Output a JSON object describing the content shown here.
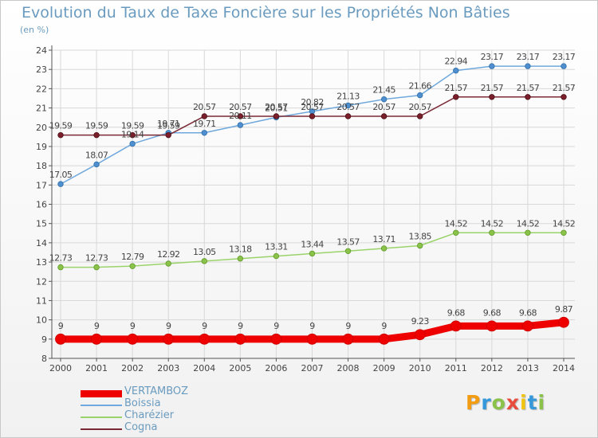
{
  "title": "Evolution du Taux de Taxe Foncière sur les Propriétés Non Bâties",
  "unit_label": "(en %)",
  "logo": {
    "text": "Proxiti",
    "letters": [
      "P",
      "r",
      "o",
      "x",
      "i",
      "t",
      "i"
    ],
    "colors": [
      "#f39c12",
      "#3498db",
      "#8bc34a",
      "#e74c3c",
      "#f1c40f",
      "#3498db",
      "#8bc34a"
    ]
  },
  "chart_data": {
    "type": "line",
    "title": "Evolution du Taux de Taxe Foncière sur les Propriétés Non Bâties",
    "ylabel": "(en %)",
    "xlabel": "",
    "ylim": [
      8,
      24
    ],
    "yticks": [
      8,
      9,
      10,
      11,
      12,
      13,
      14,
      15,
      16,
      17,
      18,
      19,
      20,
      21,
      22,
      23,
      24
    ],
    "grid": true,
    "categories": [
      "2000",
      "2001",
      "2002",
      "2003",
      "2004",
      "2005",
      "2006",
      "2007",
      "2008",
      "2009",
      "2010",
      "2011",
      "2012",
      "2013",
      "2014"
    ],
    "series": [
      {
        "name": "VERTAMBOZ",
        "color": "#ee0000",
        "values": [
          9,
          9,
          9,
          9,
          9,
          9,
          9,
          9,
          9,
          9,
          9.23,
          9.68,
          9.68,
          9.68,
          9.87
        ],
        "labels": [
          "9",
          "9",
          "9",
          "9",
          "9",
          "9",
          "9",
          "9",
          "9",
          "9",
          "9.23",
          "9.68",
          "9.68",
          "9.68",
          "9.87"
        ]
      },
      {
        "name": "Boissia",
        "color": "#6fa8dc",
        "values": [
          17.05,
          18.07,
          19.14,
          19.71,
          19.71,
          20.11,
          20.51,
          20.82,
          21.13,
          21.45,
          21.66,
          22.94,
          23.17,
          23.17,
          23.17
        ],
        "labels": [
          "17.05",
          "18.07",
          "19.14",
          "19.71",
          "19.71",
          "20.11",
          "20.51",
          "20.82",
          "21.13",
          "21.45",
          "21.66",
          "22.94",
          "23.17",
          "23.17",
          "23.17"
        ]
      },
      {
        "name": "Charézier",
        "color": "#9ad36a",
        "values": [
          12.73,
          12.73,
          12.79,
          12.92,
          13.05,
          13.18,
          13.31,
          13.44,
          13.57,
          13.71,
          13.85,
          14.52,
          14.52,
          14.52,
          14.52
        ],
        "labels": [
          "12.73",
          "12.73",
          "12.79",
          "12.92",
          "13.05",
          "13.18",
          "13.31",
          "13.44",
          "13.57",
          "13.71",
          "13.85",
          "14.52",
          "14.52",
          "14.52",
          "14.52"
        ]
      },
      {
        "name": "Cogna",
        "color": "#7b2a35",
        "values": [
          19.59,
          19.59,
          19.59,
          19.59,
          20.57,
          20.57,
          20.57,
          20.57,
          20.57,
          20.57,
          20.57,
          21.57,
          21.57,
          21.57,
          21.57
        ],
        "labels": [
          "19.59",
          "19.59",
          "19.59",
          "19.59",
          "20.57",
          "20.57",
          "20.57",
          "20.57",
          "20.57",
          "20.57",
          "20.57",
          "21.57",
          "21.57",
          "21.57",
          "21.57"
        ]
      }
    ],
    "legend": [
      "VERTAMBOZ",
      "Boissia",
      "Charézier",
      "Cogna"
    ],
    "legend_position": "bottom-left"
  }
}
